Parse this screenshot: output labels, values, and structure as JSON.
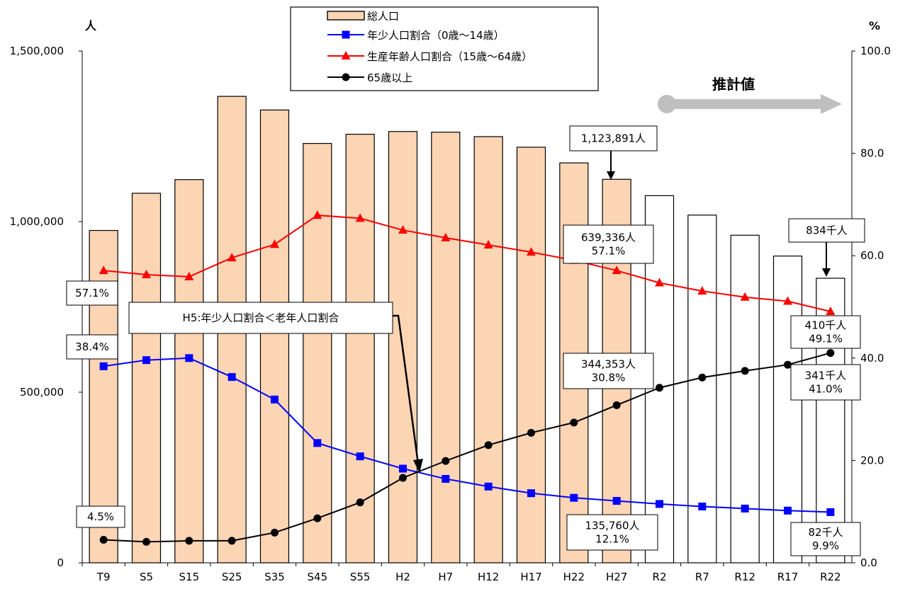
{
  "chart_data": {
    "type": "bar",
    "categories": [
      "T9",
      "S5",
      "S15",
      "S25",
      "S35",
      "S45",
      "S55",
      "H2",
      "H7",
      "H12",
      "H17",
      "H22",
      "H27",
      "R2",
      "R7",
      "R12",
      "R17",
      "R22"
    ],
    "estimate_start_index": 13,
    "y_left": {
      "unit": "人",
      "min": 0,
      "max": 1500000,
      "ticks": [
        "0",
        "500,000",
        "1,000,000",
        "1,500,000"
      ],
      "tick_values": [
        0,
        500000,
        1000000,
        1500000
      ]
    },
    "y_right": {
      "unit": "%",
      "min": 0,
      "max": 100,
      "ticks": [
        "0.0",
        "20.0",
        "40.0",
        "60.0",
        "80.0",
        "100.0"
      ],
      "tick_values": [
        0,
        20,
        40,
        60,
        80,
        100
      ]
    },
    "series": [
      {
        "name": "総人口",
        "kind": "bar",
        "axis": "left",
        "fill_actual": "#fcd5b5",
        "fill_estimate": "#ffffff",
        "values": [
          974000,
          1083000,
          1123000,
          1367000,
          1327000,
          1229000,
          1256000,
          1264000,
          1262000,
          1249000,
          1218000,
          1172000,
          1123891,
          1076000,
          1019000,
          960000,
          899000,
          834000
        ]
      },
      {
        "name": "年少人口割合（0歳～14歳）",
        "kind": "line",
        "axis": "right",
        "color": "#0000ff",
        "marker": "square",
        "values": [
          38.4,
          39.6,
          40.0,
          36.3,
          31.9,
          23.4,
          20.8,
          18.4,
          16.4,
          14.9,
          13.6,
          12.7,
          12.1,
          11.5,
          11.0,
          10.6,
          10.2,
          9.9
        ]
      },
      {
        "name": "生産年齢人口割合（15歳～64歳）",
        "kind": "line",
        "axis": "right",
        "color": "#ff0000",
        "marker": "triangle",
        "values": [
          57.1,
          56.3,
          55.9,
          59.6,
          62.2,
          67.9,
          67.3,
          65.0,
          63.5,
          62.1,
          60.7,
          59.1,
          57.1,
          54.7,
          53.1,
          51.9,
          51.1,
          49.1
        ]
      },
      {
        "name": "65歳以上",
        "kind": "line",
        "axis": "right",
        "color": "#000000",
        "marker": "circle",
        "values": [
          4.5,
          4.1,
          4.3,
          4.3,
          5.9,
          8.7,
          11.8,
          16.6,
          19.9,
          23.0,
          25.4,
          27.4,
          30.8,
          34.2,
          36.2,
          37.5,
          38.7,
          41.0
        ]
      }
    ],
    "legend": [
      {
        "label": "総人口",
        "icon": "bar"
      },
      {
        "label": "年少人口割合（0歳～14歳）",
        "icon": "square-line"
      },
      {
        "label": "生産年齢人口割合（15歳～64歳）",
        "icon": "triangle-line"
      },
      {
        "label": "65歳以上",
        "icon": "circle-line"
      }
    ],
    "legend_position": "top-center",
    "estimate_label": "推計値",
    "annotations": [
      {
        "id": "total-h27",
        "lines": [
          "1,123,891人"
        ]
      },
      {
        "id": "total-r22",
        "lines": [
          "834千人"
        ]
      },
      {
        "id": "young-t9",
        "lines": [
          "38.4%"
        ]
      },
      {
        "id": "working-t9",
        "lines": [
          "57.1%"
        ]
      },
      {
        "id": "old-t9",
        "lines": [
          "4.5%"
        ]
      },
      {
        "id": "working-h27",
        "lines": [
          "639,336人",
          "57.1%"
        ]
      },
      {
        "id": "old-h27",
        "lines": [
          "344,353人",
          "30.8%"
        ]
      },
      {
        "id": "young-h27",
        "lines": [
          "135,760人",
          "12.1%"
        ]
      },
      {
        "id": "working-r22",
        "lines": [
          "410千人",
          "49.1%"
        ]
      },
      {
        "id": "old-r22",
        "lines": [
          "341千人",
          "41.0%"
        ]
      },
      {
        "id": "young-r22",
        "lines": [
          "82千人",
          "9.9%"
        ]
      },
      {
        "id": "h5-note",
        "lines": [
          "H5:年少人口割合＜老年人口割合"
        ]
      }
    ]
  }
}
